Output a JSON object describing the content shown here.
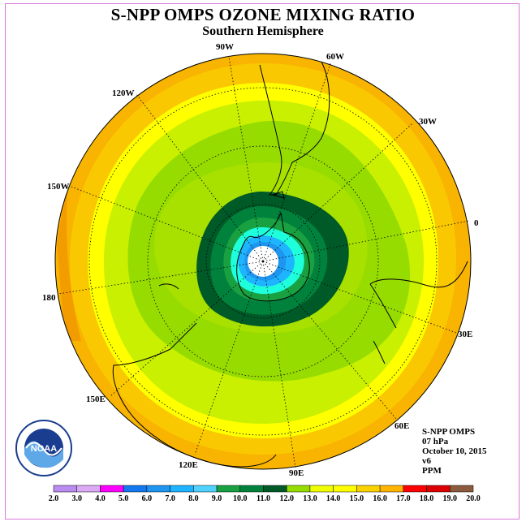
{
  "title": "S-NPP OMPS OZONE MIXING RATIO",
  "subtitle": "Southern Hemisphere",
  "longitude_labels": [
    "90W",
    "60W",
    "30W",
    "0",
    "30E",
    "60E",
    "90E",
    "120E",
    "150E",
    "180",
    "150W",
    "120W"
  ],
  "info": {
    "instrument": "S-NPP OMPS",
    "level": "07 hPa",
    "date": "October 10, 2015",
    "version": "v6",
    "units": "PPM"
  },
  "logo": {
    "text": "NOAA"
  },
  "colorbar": {
    "ticks": [
      "2.0",
      "3.0",
      "4.0",
      "5.0",
      "6.0",
      "7.0",
      "8.0",
      "9.0",
      "10.0",
      "11.0",
      "12.0",
      "13.0",
      "14.0",
      "15.0",
      "16.0",
      "17.0",
      "18.0",
      "19.0",
      "20.0"
    ],
    "colors": [
      "#b98cf0",
      "#dcaaf5",
      "#ff00ff",
      "#0000e6",
      "#1478f0",
      "#1e96f0",
      "#1eb4ff",
      "#50d2ff",
      "#1effdc",
      "#19a041",
      "#00823c",
      "#005a28",
      "#96dc00",
      "#c8f000",
      "#f0ff00",
      "#ffff00",
      "#fad200",
      "#ffb400",
      "#ff7800",
      "#ff0000",
      "#dc0000",
      "#8c5a3c"
    ]
  },
  "map": {
    "center_value": "white",
    "fill_colors": {
      "outer": "#f2a500",
      "band_orange": "#fac800",
      "band_yellow": "#ffff00",
      "band_lime": "#c8f000",
      "band_green": "#96dc00",
      "band_dkgreen1": "#00823c",
      "band_dkgreen2": "#00a050",
      "band_teal": "#1effdc",
      "band_blue": "#1eb4ff",
      "band_blue2": "#1e96f0"
    }
  }
}
